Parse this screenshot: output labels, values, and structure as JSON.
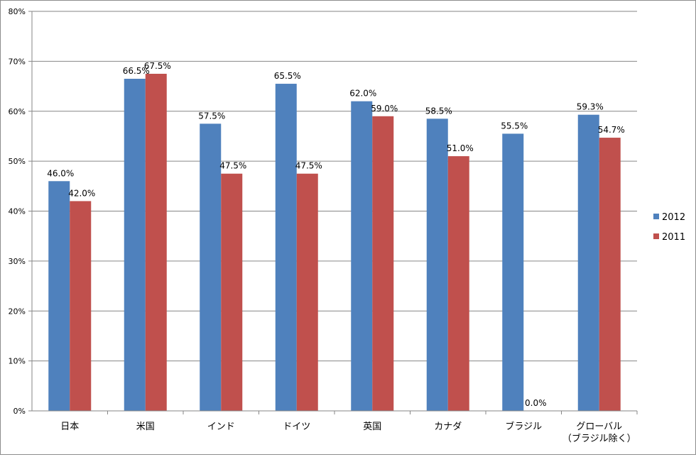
{
  "chart_data": {
    "type": "bar",
    "categories": [
      "日本",
      "米国",
      "インド",
      "ドイツ",
      "英国",
      "カナダ",
      "ブラジル",
      "グローバル\n（ブラジル除く）"
    ],
    "series": [
      {
        "name": "2012",
        "color": "#4f81bd",
        "values": [
          46.0,
          66.5,
          57.5,
          65.5,
          62.0,
          58.5,
          55.5,
          59.3
        ],
        "labels": [
          "46.0%",
          "66.5%",
          "57.5%",
          "65.5%",
          "62.0%",
          "58.5%",
          "55.5%",
          "59.3%"
        ]
      },
      {
        "name": "2011",
        "color": "#c0504d",
        "values": [
          42.0,
          67.5,
          47.5,
          47.5,
          59.0,
          51.0,
          0.0,
          54.7
        ],
        "labels": [
          "42.0%",
          "67.5%",
          "47.5%",
          "47.5%",
          "59.0%",
          "51.0%",
          "0.0%",
          "54.7%"
        ]
      }
    ],
    "ylim": [
      0,
      80
    ],
    "yticks": [
      "0%",
      "10%",
      "20%",
      "30%",
      "40%",
      "50%",
      "60%",
      "70%",
      "80%"
    ],
    "grid": true,
    "legend": "right"
  }
}
